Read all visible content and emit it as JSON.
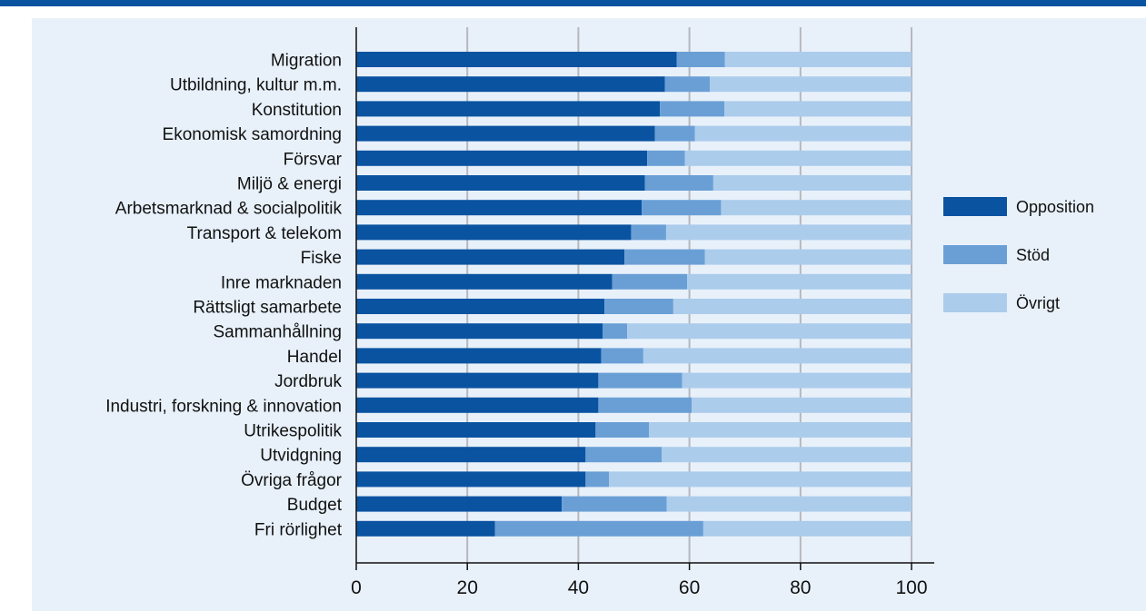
{
  "chart_data": {
    "type": "bar",
    "orientation": "horizontal",
    "stacked": true,
    "title": "",
    "xlabel": "",
    "ylabel": "",
    "xlim": [
      0,
      100
    ],
    "xticks": [
      0,
      20,
      40,
      60,
      80,
      100
    ],
    "grid": "vertical",
    "legend_position": "right",
    "categories": [
      "Migration",
      "Utbildning, kultur m.m.",
      "Konstitution",
      "Ekonomisk samordning",
      "Försvar",
      "Miljö & energi",
      "Arbetsmarknad & socialpolitik",
      "Transport & telekom",
      "Fiske",
      "Inre marknaden",
      "Rättsligt samarbete",
      "Sammanhållning",
      "Handel",
      "Jordbruk",
      "Industri, forskning & innovation",
      "Utrikespolitik",
      "Utvidgning",
      "Övriga frågor",
      "Budget",
      "Fri rörlighet"
    ],
    "series": [
      {
        "name": "Opposition",
        "color": "#0a53a1",
        "values": [
          57.7,
          55.6,
          54.7,
          53.8,
          52.4,
          52.0,
          51.4,
          49.5,
          48.3,
          46.1,
          44.7,
          44.4,
          44.1,
          43.6,
          43.6,
          43.1,
          41.3,
          41.3,
          37.0,
          25.0
        ]
      },
      {
        "name": "Stöd",
        "color": "#6a9fd6",
        "values": [
          8.7,
          8.1,
          11.6,
          7.2,
          6.8,
          12.3,
          14.3,
          6.3,
          14.5,
          13.5,
          12.4,
          4.4,
          7.6,
          15.1,
          16.8,
          9.6,
          13.7,
          4.2,
          18.9,
          37.5
        ]
      },
      {
        "name": "Övrigt",
        "color": "#acccec",
        "values": [
          33.6,
          36.3,
          33.7,
          39.0,
          40.8,
          35.7,
          34.3,
          44.2,
          37.2,
          40.4,
          42.9,
          51.2,
          48.3,
          41.3,
          39.6,
          47.3,
          45.0,
          54.5,
          44.1,
          37.5
        ]
      }
    ]
  }
}
